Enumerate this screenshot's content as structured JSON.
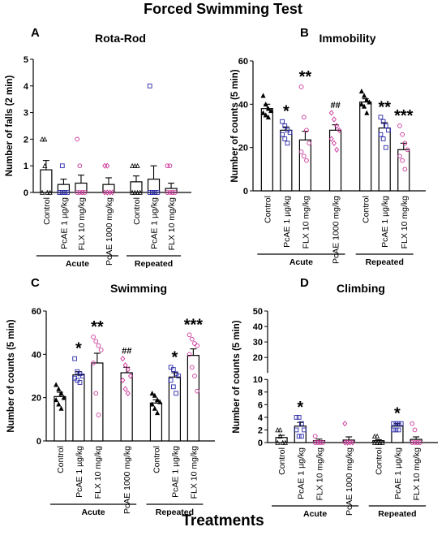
{
  "figure": {
    "title": "Forced Swimming Test",
    "xlabel": "Treatments"
  },
  "colors": {
    "control": "#000000",
    "pcae": "#2a2aaa",
    "flx": "#cc3399",
    "pcae1000": "#cc3399"
  },
  "chart_data": [
    {
      "type": "bar",
      "panel_letter": "A",
      "title": "Rota-Rod",
      "ylabel": "Number of falls (2 min)",
      "ylim": [
        0,
        5
      ],
      "yticks": [
        0,
        1,
        2,
        3,
        4,
        5
      ],
      "categories": [
        "Control",
        "PcAE 1 µg/kg",
        "FLX 10 mg/kg",
        "PcAE 1000 mg/kg",
        "Control",
        "PcAE 1 µg/kg",
        "FLX 10 mg/kg"
      ],
      "groups": [
        {
          "label": "Acute",
          "from": 0,
          "to": 3
        },
        {
          "label": "Repeated",
          "from": 4,
          "to": 6
        }
      ],
      "values": [
        0.85,
        0.3,
        0.35,
        0.3,
        0.4,
        0.5,
        0.15
      ],
      "errors": [
        0.35,
        0.2,
        0.3,
        0.25,
        0.22,
        0.5,
        0.2
      ],
      "points": [
        [
          2,
          2,
          0,
          0,
          0,
          1
        ],
        [
          0,
          0,
          0,
          0,
          0,
          1,
          0
        ],
        [
          0,
          0,
          0,
          0,
          2,
          1,
          0
        ],
        [
          1,
          1,
          0,
          0,
          0,
          0
        ],
        [
          1,
          1,
          1,
          0,
          0,
          0,
          0
        ],
        [
          4,
          0,
          0,
          0,
          0,
          0,
          0
        ],
        [
          1,
          1,
          0,
          0,
          0,
          0,
          0
        ]
      ],
      "significance": [
        "",
        "",
        "",
        "",
        "",
        "",
        ""
      ]
    },
    {
      "type": "bar",
      "panel_letter": "B",
      "title": "Immobility",
      "ylabel": "Number of counts (5 min)",
      "ylim": [
        0,
        60
      ],
      "yticks": [
        0,
        20,
        40,
        60
      ],
      "categories": [
        "Control",
        "PcAE 1 µg/kg",
        "FLX 10 mg/kg",
        "PcAE 1000 mg/kg",
        "Control",
        "PcAE 1 µg/kg",
        "FLX 10 mg/kg"
      ],
      "groups": [
        {
          "label": "Acute",
          "from": 0,
          "to": 3
        },
        {
          "label": "Repeated",
          "from": 4,
          "to": 6
        }
      ],
      "values": [
        38,
        28,
        23.5,
        28,
        41,
        29,
        19
      ],
      "errors": [
        2,
        1.5,
        4,
        2.5,
        1.5,
        2.5,
        3
      ],
      "points": [
        [
          44,
          40,
          38,
          37,
          36,
          35,
          34
        ],
        [
          32,
          30,
          28,
          27,
          26,
          24,
          22
        ],
        [
          48,
          34,
          28,
          22,
          18,
          16,
          14
        ],
        [
          36,
          33,
          30,
          28,
          24,
          22,
          19
        ],
        [
          46,
          44,
          42,
          41,
          40,
          39,
          36
        ],
        [
          34,
          32,
          30,
          28,
          26,
          24,
          20
        ],
        [
          30,
          26,
          22,
          19,
          16,
          14,
          10
        ]
      ],
      "significance": [
        "",
        "*",
        "**",
        "##",
        "",
        "**",
        "***"
      ]
    },
    {
      "type": "bar",
      "panel_letter": "C",
      "title": "Swimming",
      "ylabel": "Number of counts (5 min)",
      "ylim": [
        0,
        60
      ],
      "yticks": [
        0,
        20,
        40,
        60
      ],
      "categories": [
        "Control",
        "PcAE 1 µg/kg",
        "FLX 10 mg/kg",
        "PcAE 1000 mg/kg",
        "Control",
        "PcAE 1 µg/kg",
        "FLX 10 mg/kg"
      ],
      "groups": [
        {
          "label": "Acute",
          "from": 0,
          "to": 3
        },
        {
          "label": "Repeated",
          "from": 4,
          "to": 6
        }
      ],
      "values": [
        20.5,
        30.5,
        36,
        31.5,
        17.5,
        29.5,
        39.5
      ],
      "errors": [
        2,
        1.5,
        4.5,
        2.5,
        1.5,
        2,
        3
      ],
      "points": [
        [
          26,
          24,
          22,
          20,
          19,
          17,
          15
        ],
        [
          38,
          32,
          31,
          30,
          29,
          28,
          27
        ],
        [
          48,
          46,
          44,
          42,
          36,
          22,
          12
        ],
        [
          38,
          35,
          33,
          30,
          28,
          24,
          22
        ],
        [
          22,
          21,
          19,
          18,
          17,
          15,
          13
        ],
        [
          34,
          33,
          31,
          30,
          28,
          25,
          22
        ],
        [
          49,
          47,
          45,
          44,
          40,
          34,
          30,
          23
        ]
      ],
      "significance": [
        "",
        "*",
        "**",
        "##",
        "",
        "*",
        "***"
      ]
    },
    {
      "type": "bar",
      "panel_letter": "D",
      "title": "Climbing",
      "ylabel": "Number of counts (5 min)",
      "ylim": [
        0,
        50
      ],
      "ybreak": [
        10,
        12
      ],
      "yticks": [
        0,
        2,
        4,
        6,
        8,
        10,
        20,
        30,
        40,
        50
      ],
      "categories": [
        "Control",
        "PcAE 1 µg/kg",
        "FLX 10 mg/kg",
        "PcAE 1000 mg/kg",
        "Control",
        "PcAE 1 µg/kg",
        "FLX 10 mg/kg"
      ],
      "groups": [
        {
          "label": "Acute",
          "from": 0,
          "to": 3
        },
        {
          "label": "Repeated",
          "from": 4,
          "to": 6
        }
      ],
      "values": [
        0.8,
        2.6,
        0.3,
        0.4,
        0.3,
        2.6,
        0.5
      ],
      "errors": [
        0.35,
        0.6,
        0.25,
        0.5,
        0.15,
        0.4,
        0.4
      ],
      "points": [
        [
          2,
          2,
          0,
          0,
          0,
          1
        ],
        [
          4,
          4,
          3,
          2,
          2,
          1,
          1
        ],
        [
          1,
          0,
          0,
          0,
          0,
          0,
          0
        ],
        [
          3,
          0,
          0,
          0,
          0,
          0
        ],
        [
          1,
          1,
          0,
          0,
          0,
          0,
          0
        ],
        [
          3,
          3,
          3,
          3,
          2,
          2,
          2
        ],
        [
          3,
          2,
          0,
          0,
          0,
          0,
          0
        ]
      ],
      "significance": [
        "",
        "*",
        "",
        "",
        "",
        "*",
        ""
      ]
    }
  ]
}
